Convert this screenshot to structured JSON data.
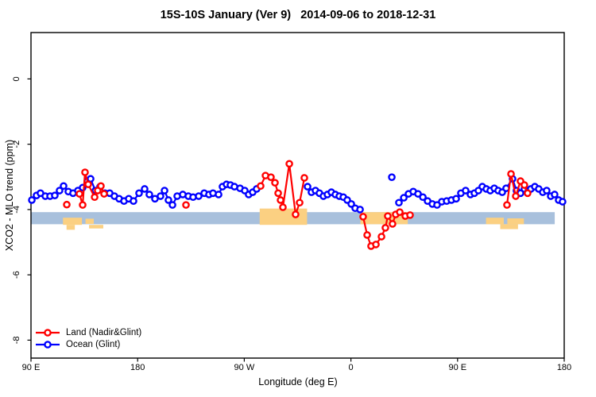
{
  "chart_data": {
    "type": "scatter",
    "title": "15S-10S January (Ver 9)   2014-09-06 to 2018-12-31",
    "xlabel": "Longitude (deg E)",
    "ylabel": "XCO2 - MLO trend (ppm)",
    "grid": false,
    "x_axis": {
      "min": 90,
      "max": 540,
      "ticks": [
        {
          "deg": 90,
          "label": "90 E"
        },
        {
          "deg": 180,
          "label": "180"
        },
        {
          "deg": 270,
          "label": "90 W"
        },
        {
          "deg": 360,
          "label": "0"
        },
        {
          "deg": 450,
          "label": "90 E"
        },
        {
          "deg": 540,
          "label": "180"
        }
      ]
    },
    "y_axis": {
      "min": -8.55,
      "max": 1.42,
      "ticks": [
        "0",
        "-2",
        "-4",
        "-6",
        "-8"
      ]
    },
    "band": {
      "color": "#a8c0dc",
      "x": [
        90,
        532
      ],
      "y": [
        -4.08,
        -4.45
      ]
    },
    "wheat_regions": [
      {
        "x": [
          283,
          323
        ],
        "y": [
          -3.97,
          -4.47
        ]
      },
      {
        "x": [
          368,
          408
        ],
        "y": [
          -4.08,
          -4.45
        ]
      },
      {
        "x": [
          117,
          133
        ],
        "y": [
          -4.25,
          -4.47
        ]
      },
      {
        "x": [
          136,
          143
        ],
        "y": [
          -4.28,
          -4.44
        ]
      },
      {
        "x": [
          120,
          127
        ],
        "y": [
          -4.47,
          -4.62
        ]
      },
      {
        "x": [
          139,
          151
        ],
        "y": [
          -4.47,
          -4.58
        ]
      },
      {
        "x": [
          474,
          489
        ],
        "y": [
          -4.25,
          -4.45
        ]
      },
      {
        "x": [
          492,
          506
        ],
        "y": [
          -4.27,
          -4.45
        ]
      },
      {
        "x": [
          486,
          501
        ],
        "y": [
          -4.45,
          -4.6
        ]
      }
    ],
    "wheat_color": "#fbd082",
    "legend": {
      "position": "bottom-left",
      "items": [
        {
          "label": "Land (Nadir&Glint)",
          "color": "#ff0000"
        },
        {
          "label": "Ocean (Glint)",
          "color": "#0000ff"
        }
      ]
    },
    "series": [
      {
        "name": "Ocean (Glint)",
        "color": "#0000ff",
        "segments": [
          [
            [
              90.7,
              -3.71
            ],
            [
              94.7,
              -3.57
            ],
            [
              98.0,
              -3.5
            ],
            [
              102.1,
              -3.59
            ],
            [
              106.1,
              -3.59
            ],
            [
              110.1,
              -3.57
            ],
            [
              114.1,
              -3.42
            ],
            [
              117.5,
              -3.28
            ],
            [
              121.5,
              -3.45
            ],
            [
              125.5,
              -3.5
            ],
            [
              129.6,
              -3.42
            ],
            [
              133.6,
              -3.33
            ],
            [
              137.6,
              -3.13
            ],
            [
              140.3,
              -3.06
            ],
            [
              144.3,
              -3.42
            ],
            [
              148.3,
              -3.3
            ],
            [
              152.4,
              -3.5
            ],
            [
              156.4,
              -3.5
            ],
            [
              160.4,
              -3.59
            ],
            [
              164.4,
              -3.67
            ],
            [
              168.5,
              -3.74
            ],
            [
              172.5,
              -3.67
            ],
            [
              176.5,
              -3.74
            ],
            [
              181.2,
              -3.5
            ],
            [
              185.9,
              -3.37
            ],
            [
              189.9,
              -3.54
            ],
            [
              194.6,
              -3.67
            ],
            [
              199.3,
              -3.59
            ],
            [
              202.7,
              -3.42
            ],
            [
              206.0,
              -3.71
            ],
            [
              209.4,
              -3.86
            ],
            [
              213.4,
              -3.59
            ],
            [
              218.1,
              -3.54
            ],
            [
              222.8,
              -3.59
            ],
            [
              226.8,
              -3.62
            ],
            [
              231.5,
              -3.59
            ],
            [
              236.2,
              -3.5
            ],
            [
              240.2,
              -3.54
            ],
            [
              243.6,
              -3.5
            ],
            [
              248.3,
              -3.54
            ],
            [
              251.6,
              -3.3
            ],
            [
              255.0,
              -3.23
            ],
            [
              258.3,
              -3.25
            ],
            [
              261.7,
              -3.3
            ],
            [
              266.4,
              -3.35
            ],
            [
              270.4,
              -3.42
            ],
            [
              273.7,
              -3.54
            ],
            [
              277.1,
              -3.47
            ],
            [
              280.4,
              -3.37
            ]
          ],
          [
            [
              323.4,
              -3.3
            ],
            [
              326.7,
              -3.47
            ],
            [
              330.1,
              -3.42
            ],
            [
              333.4,
              -3.5
            ],
            [
              336.8,
              -3.59
            ],
            [
              340.2,
              -3.54
            ],
            [
              343.5,
              -3.47
            ],
            [
              346.9,
              -3.54
            ],
            [
              350.2,
              -3.59
            ],
            [
              353.6,
              -3.62
            ],
            [
              356.9,
              -3.71
            ],
            [
              360.3,
              -3.83
            ],
            [
              363.6,
              -3.96
            ],
            [
              367.7,
              -4.0
            ]
          ],
          [
            [
              394.5,
              -3.01
            ]
          ],
          [
            [
              400.5,
              -3.79
            ],
            [
              404.6,
              -3.64
            ],
            [
              408.6,
              -3.52
            ],
            [
              412.6,
              -3.45
            ],
            [
              416.6,
              -3.52
            ],
            [
              420.7,
              -3.62
            ],
            [
              424.7,
              -3.74
            ],
            [
              428.7,
              -3.83
            ],
            [
              432.7,
              -3.86
            ],
            [
              436.7,
              -3.76
            ],
            [
              440.8,
              -3.74
            ],
            [
              444.8,
              -3.71
            ],
            [
              448.8,
              -3.67
            ],
            [
              452.8,
              -3.5
            ],
            [
              456.8,
              -3.42
            ],
            [
              460.9,
              -3.54
            ],
            [
              464.2,
              -3.5
            ],
            [
              467.6,
              -3.42
            ],
            [
              470.9,
              -3.3
            ],
            [
              474.3,
              -3.37
            ],
            [
              477.6,
              -3.42
            ],
            [
              481.0,
              -3.35
            ],
            [
              484.3,
              -3.42
            ],
            [
              487.7,
              -3.47
            ],
            [
              491.0,
              -3.35
            ],
            [
              496.4,
              -3.06
            ],
            [
              499.7,
              -3.42
            ],
            [
              503.1,
              -3.5
            ],
            [
              506.4,
              -3.37
            ],
            [
              509.8,
              -3.42
            ],
            [
              511.8,
              -3.37
            ],
            [
              515.2,
              -3.3
            ],
            [
              518.5,
              -3.37
            ],
            [
              521.9,
              -3.47
            ],
            [
              525.2,
              -3.42
            ],
            [
              528.6,
              -3.59
            ],
            [
              531.9,
              -3.54
            ],
            [
              535.3,
              -3.71
            ],
            [
              538.6,
              -3.76
            ]
          ]
        ]
      },
      {
        "name": "Land (Nadir&Glint)",
        "color": "#ff0000",
        "segments": [
          [
            [
              120.2,
              -3.85
            ]
          ],
          [
            [
              130.9,
              -3.52
            ],
            [
              133.6,
              -3.86
            ],
            [
              135.6,
              -2.86
            ],
            [
              138.3,
              -3.23
            ],
            [
              143.7,
              -3.62
            ],
            [
              146.3,
              -3.42
            ],
            [
              149.0,
              -3.28
            ],
            [
              151.7,
              -3.52
            ]
          ],
          [
            [
              220.8,
              -3.86
            ]
          ],
          [
            [
              283.8,
              -3.28
            ],
            [
              287.9,
              -2.96
            ],
            [
              292.5,
              -3.01
            ],
            [
              295.9,
              -3.18
            ],
            [
              298.6,
              -3.5
            ],
            [
              300.6,
              -3.71
            ],
            [
              302.6,
              -3.93
            ],
            [
              308.0,
              -2.6
            ],
            [
              313.3,
              -4.15
            ],
            [
              316.7,
              -3.79
            ],
            [
              320.7,
              -3.03
            ]
          ],
          [
            [
              370.3,
              -4.22
            ],
            [
              373.7,
              -4.78
            ],
            [
              377.0,
              -5.12
            ],
            [
              381.1,
              -5.07
            ],
            [
              385.8,
              -4.83
            ],
            [
              389.1,
              -4.56
            ],
            [
              391.1,
              -4.2
            ],
            [
              395.1,
              -4.44
            ],
            [
              397.8,
              -4.15
            ],
            [
              401.2,
              -4.08
            ],
            [
              405.9,
              -4.2
            ],
            [
              409.9,
              -4.17
            ]
          ],
          [
            [
              491.7,
              -3.86
            ],
            [
              495.1,
              -2.91
            ],
            [
              499.1,
              -3.59
            ],
            [
              503.1,
              -3.13
            ],
            [
              506.4,
              -3.25
            ],
            [
              509.1,
              -3.5
            ]
          ]
        ]
      }
    ]
  }
}
